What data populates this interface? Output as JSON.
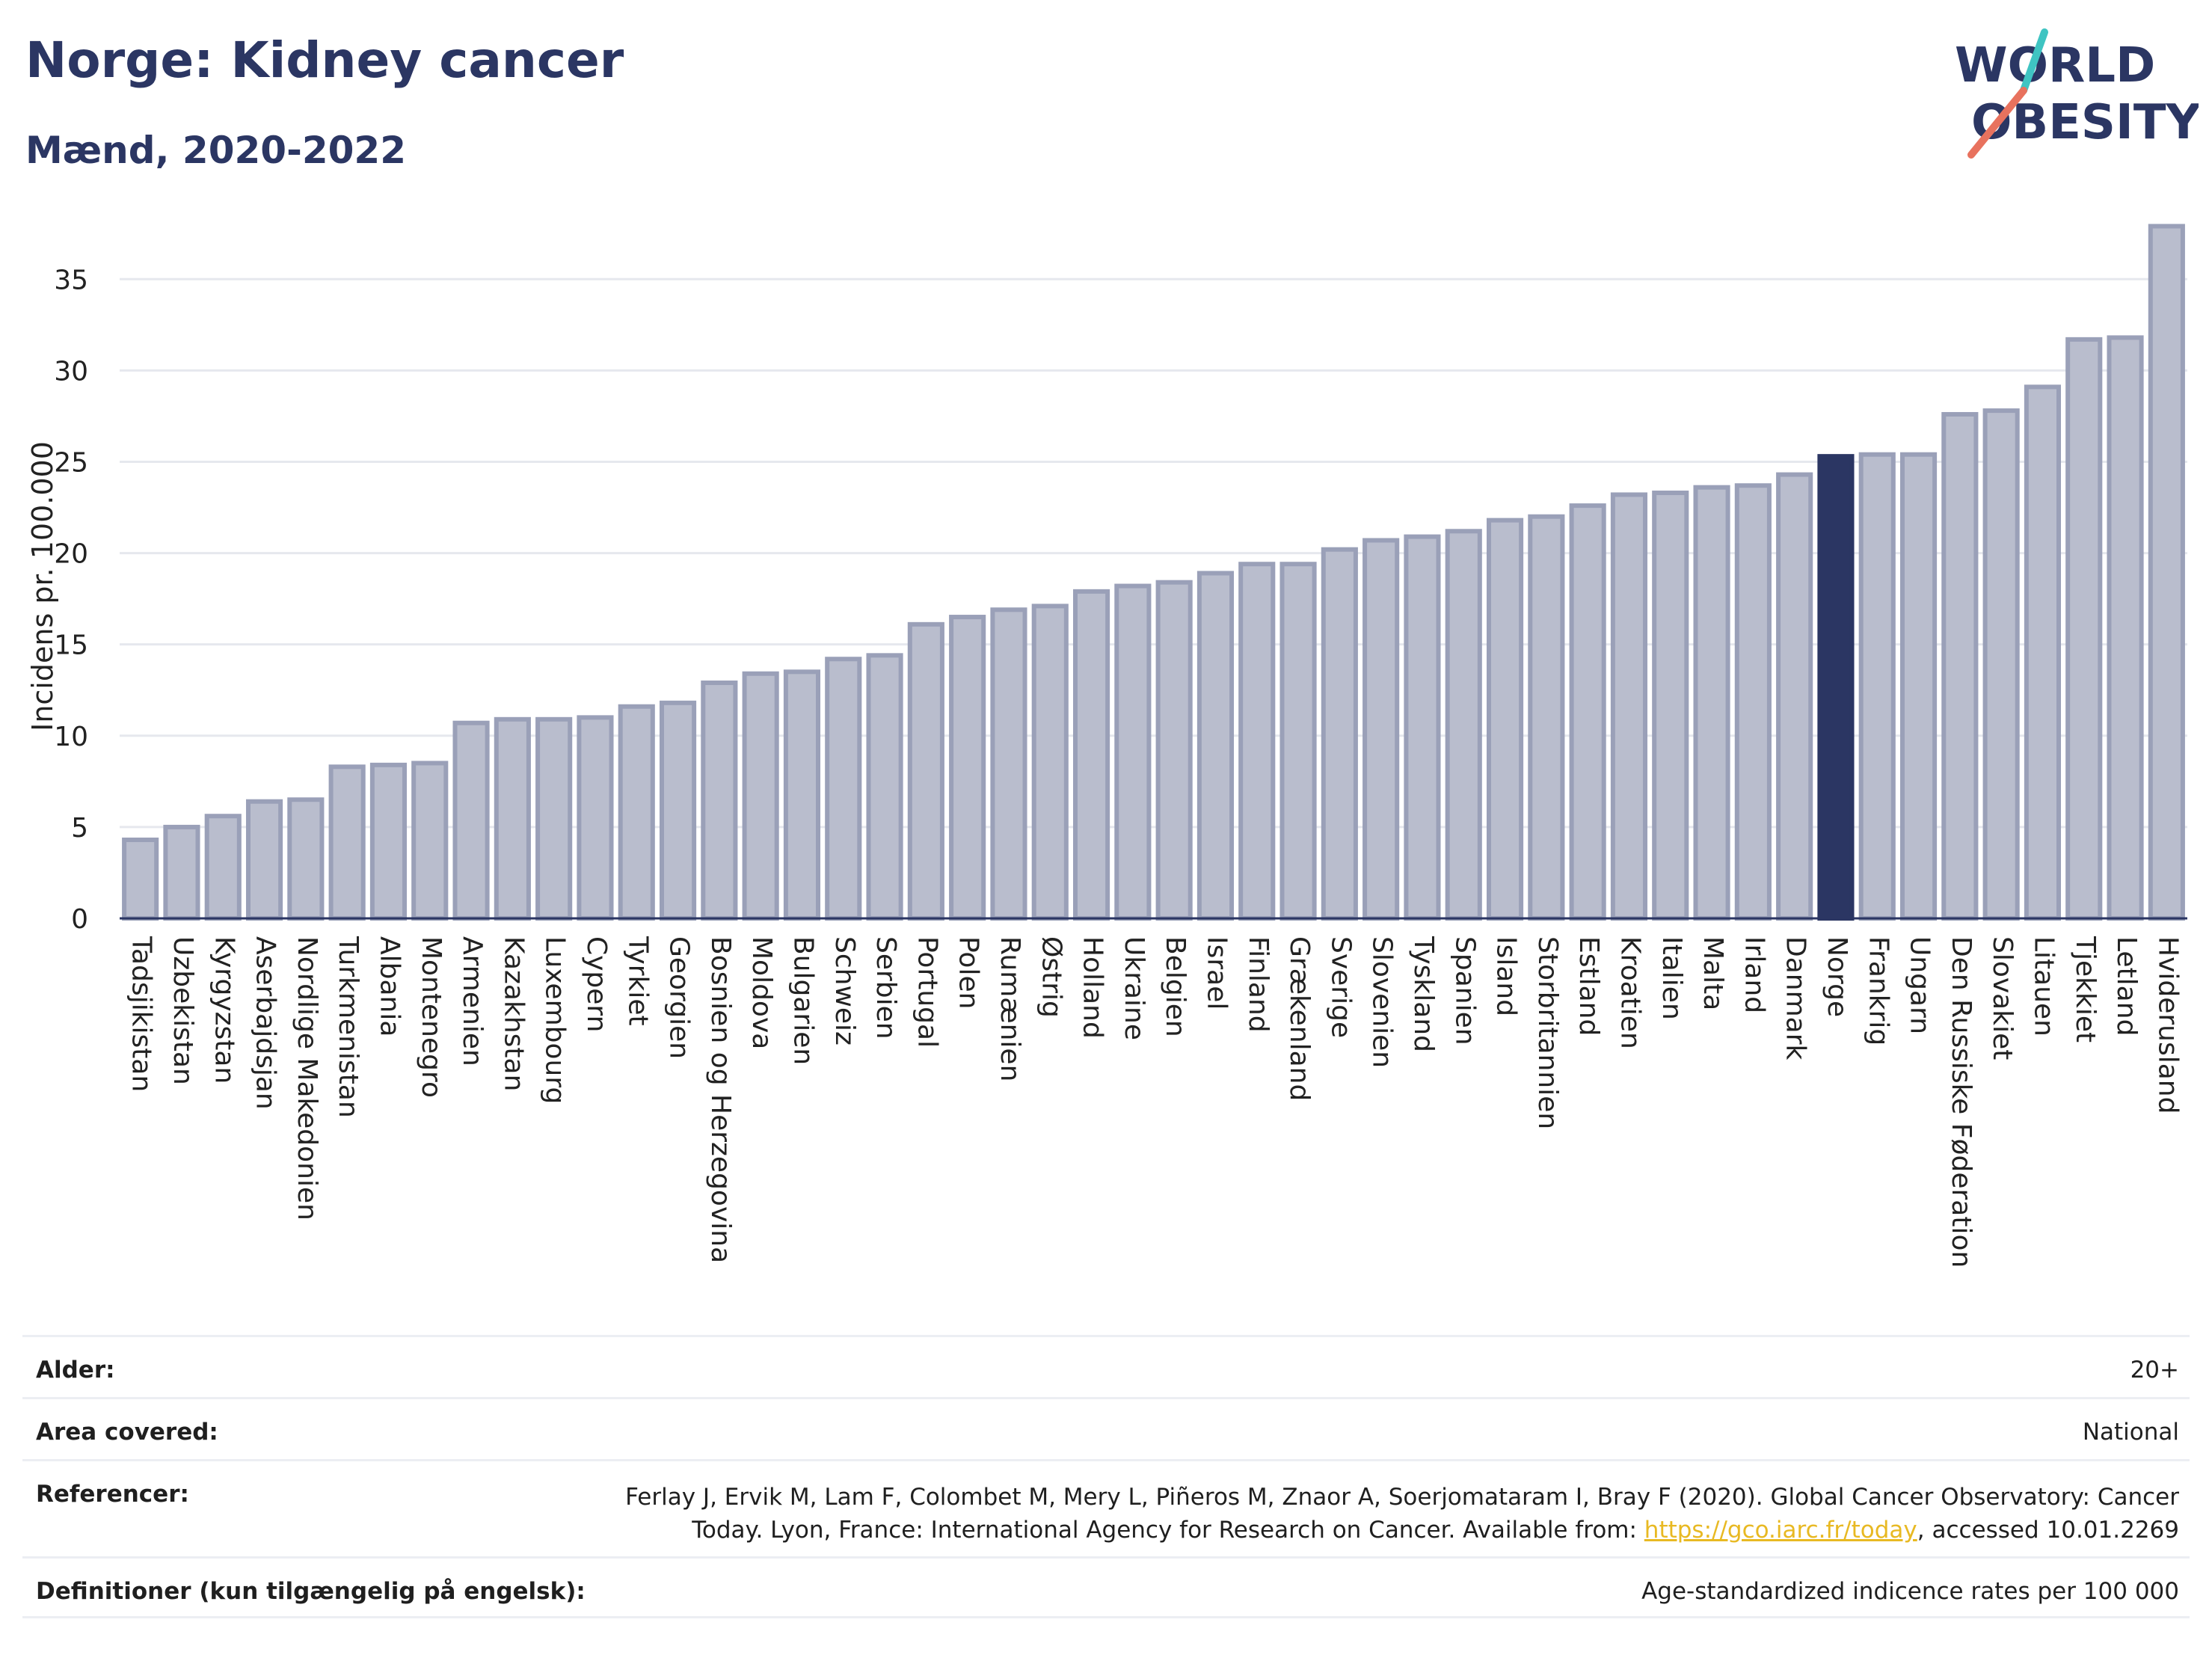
{
  "header": {
    "title": "Norge: Kidney cancer",
    "subtitle": "Mænd, 2020-2022"
  },
  "logo": {
    "line1": "WORLD",
    "line2": "OBESITY",
    "text_color": "#2b3663",
    "slash_colors": [
      "#3fc4c2",
      "#e8725e"
    ]
  },
  "chart_data": {
    "type": "bar",
    "ylabel": "Incidens pr. 100.000",
    "xlabel": "",
    "ylim": [
      0,
      38
    ],
    "yticks": [
      0,
      5,
      10,
      15,
      20,
      25,
      30,
      35
    ],
    "grid": true,
    "highlight": "Norge",
    "colors": {
      "bar": "#b9bdcd",
      "bar_border": "#9aa0b8",
      "highlight": "#2b3663"
    },
    "categories": [
      "Tadsjikistan",
      "Uzbekistan",
      "Kyrgyzstan",
      "Aserbajdsjan",
      "Nordlige Makedonien",
      "Turkmenistan",
      "Albania",
      "Montenegro",
      "Armenien",
      "Kazakhstan",
      "Luxembourg",
      "Cypern",
      "Tyrkiet",
      "Georgien",
      "Bosnien og Herzegovina",
      "Moldova",
      "Bulgarien",
      "Schweiz",
      "Serbien",
      "Portugal",
      "Polen",
      "Rumænien",
      "Østrig",
      "Holland",
      "Ukraine",
      "Belgien",
      "Israel",
      "Finland",
      "Grækenland",
      "Sverige",
      "Slovenien",
      "Tyskland",
      "Spanien",
      "Island",
      "Storbritannien",
      "Estland",
      "Kroatien",
      "Italien",
      "Malta",
      "Irland",
      "Danmark",
      "Norge",
      "Frankrig",
      "Ungarn",
      "Den Russiske Føderation",
      "Slovakiet",
      "Litauen",
      "Tjekkiet",
      "Letland",
      "Hviderusland"
    ],
    "values": [
      4.3,
      5.0,
      5.6,
      6.4,
      6.5,
      8.3,
      8.4,
      8.5,
      10.7,
      10.9,
      10.9,
      11.0,
      11.6,
      11.8,
      12.9,
      13.4,
      13.5,
      14.2,
      14.4,
      16.1,
      16.5,
      16.9,
      17.1,
      17.9,
      18.2,
      18.4,
      18.9,
      19.4,
      19.4,
      20.2,
      20.7,
      20.9,
      21.2,
      21.8,
      22.0,
      22.6,
      23.2,
      23.3,
      23.6,
      23.7,
      24.3,
      25.3,
      25.4,
      25.4,
      27.6,
      27.8,
      29.1,
      31.7,
      31.8,
      37.9
    ]
  },
  "meta": {
    "age_label": "Alder:",
    "age_value": "20+",
    "area_label": "Area covered:",
    "area_value": "National",
    "ref_label": "Referencer:",
    "ref_text1": "Ferlay J, Ervik M, Lam F, Colombet M, Mery L, Piñeros M, Znaor A, Soerjomataram I, Bray F (2020). Global Cancer Observatory: Cancer Today. Lyon, France: International Agency for Research on Cancer. Available from: ",
    "ref_link": "https://gco.iarc.fr/today",
    "ref_text2": ", accessed 10.01.2269",
    "def_label": "Definitioner (kun tilgængelig på engelsk):",
    "def_value": "Age-standardized indicence rates per 100 000"
  }
}
